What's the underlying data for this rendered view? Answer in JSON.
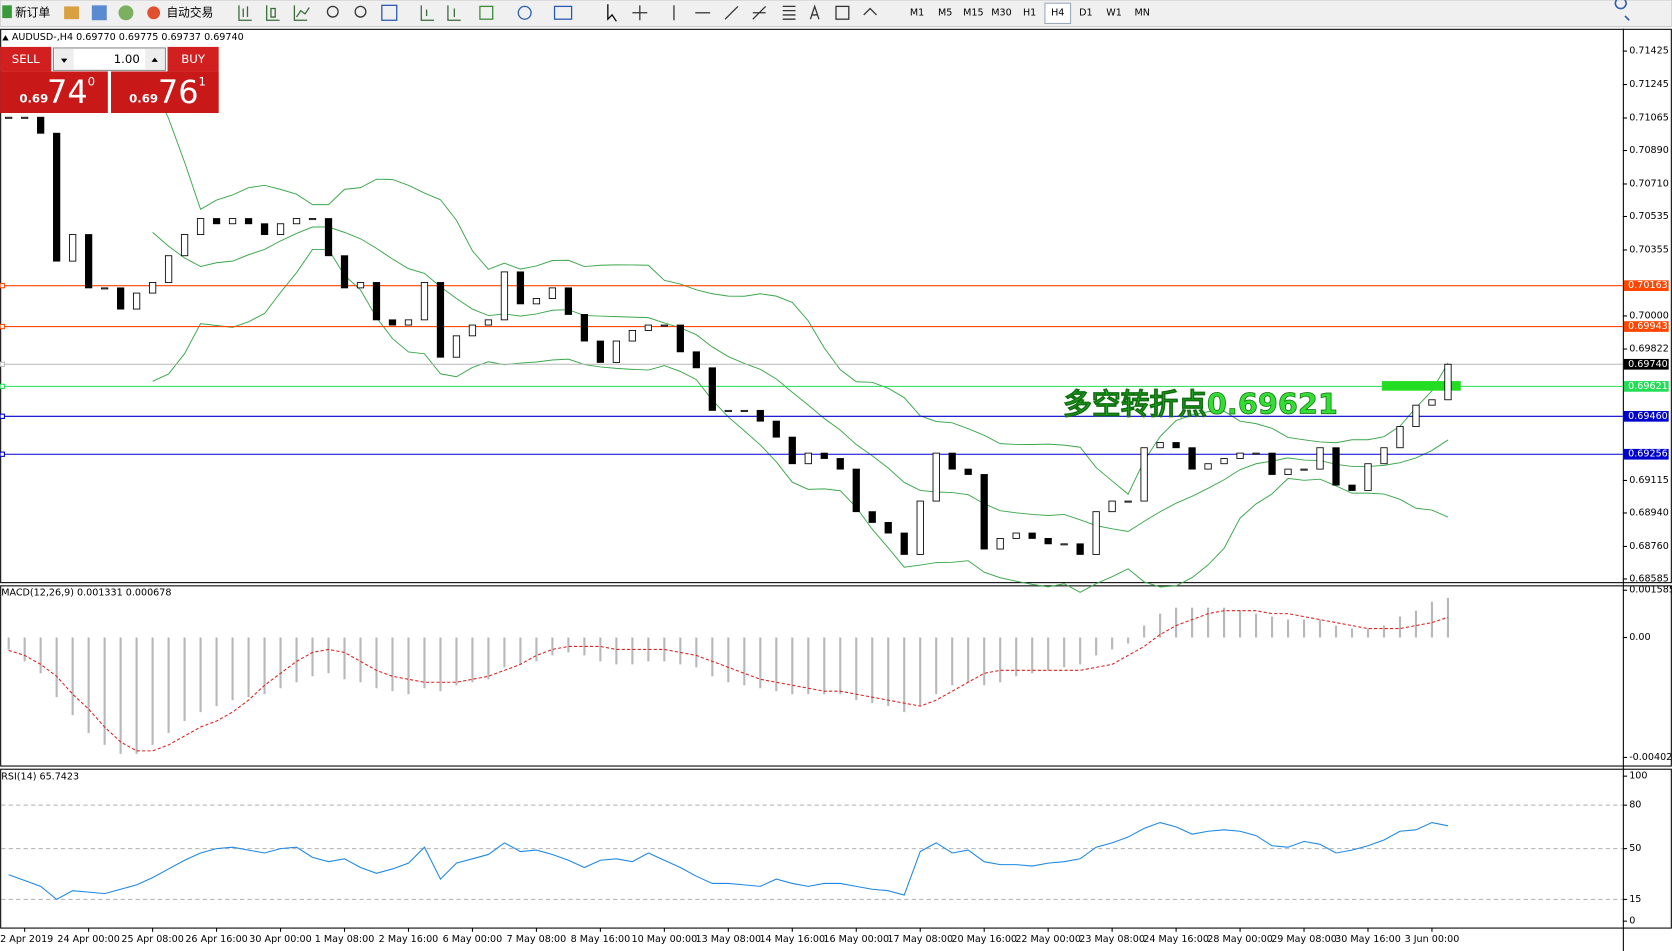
{
  "toolbar": {
    "new_order": "新订单",
    "auto_trade": "自动交易",
    "timeframes": [
      "M1",
      "M5",
      "M15",
      "M30",
      "H1",
      "H4",
      "D1",
      "W1",
      "MN"
    ],
    "active_timeframe": 5
  },
  "trade_panel": {
    "sell": "SELL",
    "buy": "BUY",
    "lot": "1.00",
    "bid_big": "0.69",
    "bid_pips": "74",
    "bid_frac": "0",
    "ask_big": "0.69",
    "ask_pips": "76",
    "ask_frac": "1"
  },
  "chart_data": [
    {
      "type": "candlestick",
      "title": "AUDUSD-,H4  0.69770 0.69775 0.69737 0.69740",
      "close": [
        0.71069,
        0.71069,
        0.70983,
        0.70295,
        0.70438,
        0.70151,
        0.70151,
        0.70037,
        0.70123,
        0.7018,
        0.70324,
        0.70438,
        0.70524,
        0.70496,
        0.70524,
        0.70496,
        0.70438,
        0.70496,
        0.70524,
        0.70524,
        0.70324,
        0.70151,
        0.7018,
        0.69979,
        0.69951,
        0.69979,
        0.7018,
        0.69778,
        0.69893,
        0.69951,
        0.69979,
        0.70237,
        0.70065,
        0.70094,
        0.70151,
        0.70008,
        0.69865,
        0.6975,
        0.69865,
        0.69922,
        0.69951,
        0.69951,
        0.69807,
        0.69721,
        0.69492,
        0.69492,
        0.69492,
        0.69434,
        0.69348,
        0.69205,
        0.69262,
        0.69233,
        0.69176,
        0.68947,
        0.68889,
        0.68832,
        0.68717,
        0.69004,
        0.69262,
        0.69176,
        0.69147,
        0.68746,
        0.68803,
        0.68832,
        0.68803,
        0.68774,
        0.68774,
        0.68717,
        0.68947,
        0.69004,
        0.69004,
        0.69291,
        0.69319,
        0.69291,
        0.69176,
        0.69205,
        0.69233,
        0.69262,
        0.69262,
        0.69147,
        0.69176,
        0.69176,
        0.69291,
        0.6909,
        0.69061,
        0.69205,
        0.69291,
        0.69405,
        0.6952,
        0.69549,
        0.6974
      ],
      "ylim": [
        0.68568,
        0.71545
      ],
      "yticks": [
        0.71425,
        0.71245,
        0.71065,
        {
          "value": 0.7089,
          "label": "0.70890"
        },
        {
          "value": 0.7071,
          "label": "0.70710"
        },
        0.70535,
        0.70355,
        {
          "value": 0.7,
          "label": "0.70000"
        },
        0.69822,
        0.69115,
        {
          "value": 0.6894,
          "label": "0.68940"
        },
        {
          "value": 0.6876,
          "label": "0.68760"
        },
        0.68585
      ],
      "levels": [
        {
          "price": 0.70163,
          "color": "#ff4500"
        },
        {
          "price": 0.69943,
          "color": "#ff4500"
        },
        {
          "price": 0.6974,
          "label": "0.69740",
          "color": "#000000"
        },
        {
          "price": 0.69621,
          "color": "#22dd55"
        },
        {
          "price": 0.6946,
          "label": "0.69460",
          "color": "#0000cd"
        },
        {
          "price": 0.69256,
          "color": "#0000cd"
        }
      ],
      "annotation": "多空转折点0.69621",
      "x_axis_labels": [
        "2 Apr 2019",
        "24 Apr 00:00",
        "25 Apr 08:00",
        "26 Apr 16:00",
        "30 Apr 00:00",
        "1 May 08:00",
        "2 May 16:00",
        "6 May 00:00",
        "7 May 08:00",
        "8 May 16:00",
        "10 May 00:00",
        "13 May 08:00",
        "14 May 16:00",
        "16 May 00:00",
        "17 May 08:00",
        "20 May 16:00",
        "22 May 00:00",
        "23 May 08:00",
        "24 May 16:00",
        "28 May 00:00",
        "29 May 08:00",
        "30 May 16:00",
        "3 Jun 00:00"
      ]
    },
    {
      "type": "macd",
      "title": "MACD(12,26,9) 0.001331 0.000678",
      "histogram": [
        -0.0004,
        -0.0008,
        -0.0012,
        -0.002,
        -0.0026,
        -0.0032,
        -0.0036,
        -0.0039,
        -0.0039,
        -0.0036,
        -0.0032,
        -0.0028,
        -0.0025,
        -0.0023,
        -0.0021,
        -0.002,
        -0.0019,
        -0.0017,
        -0.0015,
        -0.0013,
        -0.0012,
        -0.0014,
        -0.0015,
        -0.0017,
        -0.0018,
        -0.0019,
        -0.0017,
        -0.0018,
        -0.0016,
        -0.0015,
        -0.0014,
        -0.001,
        -0.0009,
        -0.0008,
        -0.0006,
        -0.0005,
        -0.0006,
        -0.0008,
        -0.0009,
        -0.0009,
        -0.0008,
        -0.0008,
        -0.0009,
        -0.001,
        -0.0013,
        -0.0015,
        -0.0016,
        -0.0017,
        -0.0018,
        -0.0019,
        -0.0019,
        -0.0019,
        -0.0019,
        -0.0021,
        -0.0022,
        -0.0023,
        -0.0025,
        -0.0023,
        -0.0019,
        -0.0016,
        -0.0015,
        -0.0016,
        -0.0015,
        -0.0013,
        -0.0012,
        -0.0011,
        -0.001,
        -0.0009,
        -0.0006,
        -0.0004,
        -0.0002,
        0.0004,
        0.0008,
        0.001,
        0.001,
        0.001,
        0.001,
        0.0009,
        0.0008,
        0.0007,
        0.0006,
        0.0006,
        0.0006,
        0.0004,
        0.0003,
        0.0003,
        0.0004,
        0.0007,
        0.0009,
        0.0012,
        0.001331
      ],
      "signal": [
        -0.00043,
        -0.0006,
        -0.0009,
        -0.0013,
        -0.0019,
        -0.0024,
        -0.003,
        -0.0035,
        -0.0038,
        -0.0038,
        -0.0036,
        -0.0033,
        -0.003,
        -0.0028,
        -0.0025,
        -0.0021,
        -0.0016,
        -0.0012,
        -0.0008,
        -0.0005,
        -0.0004,
        -0.0005,
        -0.0008,
        -0.0011,
        -0.0013,
        -0.0014,
        -0.0015,
        -0.0015,
        -0.0015,
        -0.0014,
        -0.0013,
        -0.0011,
        -0.0009,
        -0.0006,
        -0.0004,
        -0.0003,
        -0.0003,
        -0.0003,
        -0.0004,
        -0.0004,
        -0.0004,
        -0.0004,
        -0.0005,
        -0.0006,
        -0.0008,
        -0.001,
        -0.0012,
        -0.0014,
        -0.0015,
        -0.0016,
        -0.0017,
        -0.0018,
        -0.0018,
        -0.0019,
        -0.002,
        -0.0021,
        -0.0022,
        -0.0023,
        -0.0021,
        -0.0018,
        -0.0015,
        -0.0012,
        -0.0011,
        -0.0011,
        -0.0011,
        -0.0011,
        -0.0011,
        -0.0011,
        -0.001,
        -0.0009,
        -0.0006,
        -0.0003,
        0.0001,
        0.0004,
        0.0006,
        0.0008,
        0.0009,
        0.0009,
        0.0009,
        0.0008,
        0.0008,
        0.0007,
        0.0006,
        0.0005,
        0.0004,
        0.0003,
        0.0003,
        0.0003,
        0.0004,
        0.0005,
        0.000678
      ],
      "ylim": [
        -0.00429,
        0.00175
      ],
      "yticks": [
        {
          "value": 0.001585,
          "label": "0.001585"
        },
        {
          "value": 0,
          "label": "0.00"
        },
        {
          "value": -0.00402,
          "label": "-0.00402"
        }
      ]
    },
    {
      "type": "rsi",
      "title": "RSI(14) 65.7423",
      "values": [
        32,
        28,
        24,
        15,
        21,
        20,
        19,
        22,
        25,
        30,
        36,
        42,
        47,
        50,
        51,
        49,
        47,
        50,
        51,
        44,
        41,
        43,
        37,
        33,
        36,
        40,
        51,
        29,
        40,
        43,
        46,
        54,
        48,
        49,
        46,
        42,
        37,
        42,
        43,
        41,
        47,
        42,
        37,
        31,
        26,
        26,
        25,
        24,
        29,
        26,
        24,
        26,
        26,
        24,
        22,
        21,
        18,
        48,
        54,
        47,
        49,
        41,
        39,
        39,
        38,
        40,
        41,
        43,
        51,
        54,
        58,
        64,
        68,
        65,
        60,
        62,
        63,
        62,
        59,
        52,
        51,
        55,
        53,
        47,
        49,
        52,
        56,
        62,
        63,
        68,
        65.7423
      ],
      "ylim": [
        0,
        100
      ],
      "yticks": [
        100,
        80,
        50,
        15,
        0
      ]
    }
  ]
}
